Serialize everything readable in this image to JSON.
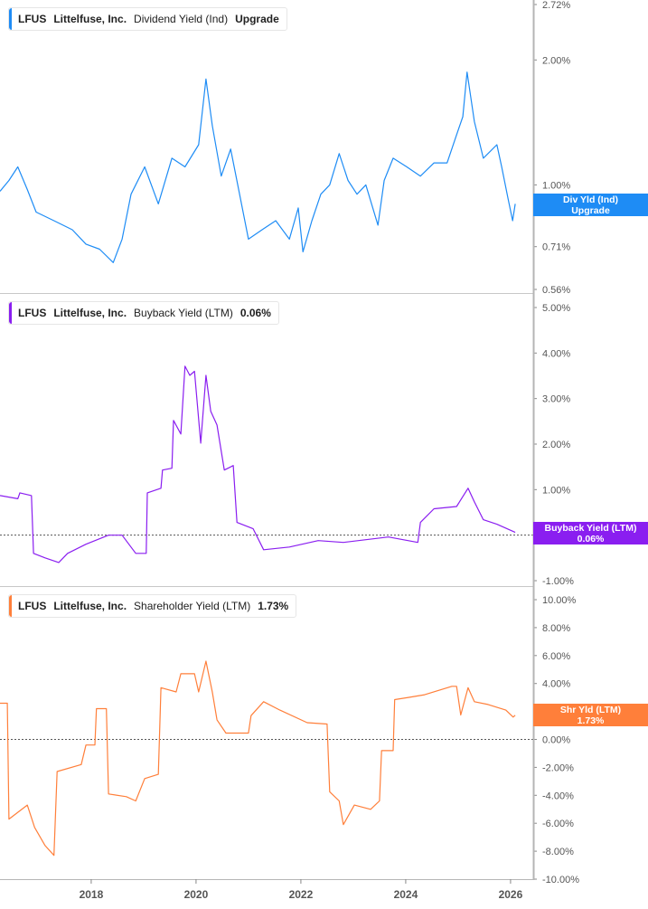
{
  "colors": {
    "dividend": "#1e8cf5",
    "buyback": "#8a1ef0",
    "shareholder": "#ff7f3a",
    "axis": "#b5b5b5",
    "tick_text": "#555555"
  },
  "panels": [
    {
      "legend": {
        "ticker": "LFUS",
        "company": "Littelfuse, Inc.",
        "metric": "Dividend Yield (Ind)",
        "value": "Upgrade"
      },
      "badge": {
        "line1": "Div Yld (Ind)",
        "line2": "Upgrade"
      }
    },
    {
      "legend": {
        "ticker": "LFUS",
        "company": "Littelfuse, Inc.",
        "metric": "Buyback Yield (LTM)",
        "value": "0.06%"
      },
      "badge": {
        "line1": "Buyback Yield (LTM)",
        "line2": "0.06%"
      }
    },
    {
      "legend": {
        "ticker": "LFUS",
        "company": "Littelfuse, Inc.",
        "metric": "Shareholder Yield (LTM)",
        "value": "1.73%"
      },
      "badge": {
        "line1": "Shr Yld (LTM)",
        "line2": "1.73%"
      }
    }
  ],
  "chart_data": [
    {
      "type": "line",
      "scale": "log",
      "ylim": [
        0.56,
        2.72
      ],
      "yticks": [
        "2.72%",
        "2.00%",
        "1.00%",
        "0.86%",
        "0.71%",
        "0.56%"
      ],
      "ytick_values": [
        2.72,
        2.0,
        1.0,
        0.86,
        0.71,
        0.56
      ],
      "series": [
        {
          "name": "Dividend Yield (Ind)",
          "color": "#1e8cf5",
          "points": [
            [
              2016.26,
              0.965
            ],
            [
              2016.43,
              1.025
            ],
            [
              2016.6,
              1.105
            ],
            [
              2016.78,
              0.975
            ],
            [
              2016.95,
              0.86
            ],
            [
              2017.29,
              0.82
            ],
            [
              2017.64,
              0.78
            ],
            [
              2017.9,
              0.72
            ],
            [
              2018.16,
              0.7
            ],
            [
              2018.42,
              0.65
            ],
            [
              2018.59,
              0.74
            ],
            [
              2018.76,
              0.95
            ],
            [
              2019.02,
              1.105
            ],
            [
              2019.28,
              0.9
            ],
            [
              2019.54,
              1.16
            ],
            [
              2019.79,
              1.105
            ],
            [
              2020.05,
              1.25
            ],
            [
              2020.19,
              1.8
            ],
            [
              2020.31,
              1.39
            ],
            [
              2020.48,
              1.05
            ],
            [
              2020.66,
              1.22
            ],
            [
              2020.83,
              0.95
            ],
            [
              2021.0,
              0.74
            ],
            [
              2021.26,
              0.78
            ],
            [
              2021.52,
              0.82
            ],
            [
              2021.78,
              0.74
            ],
            [
              2021.95,
              0.88
            ],
            [
              2022.04,
              0.69
            ],
            [
              2022.21,
              0.82
            ],
            [
              2022.38,
              0.95
            ],
            [
              2022.55,
              1.0
            ],
            [
              2022.73,
              1.19
            ],
            [
              2022.9,
              1.025
            ],
            [
              2023.07,
              0.95
            ],
            [
              2023.24,
              1.0
            ],
            [
              2023.47,
              0.8
            ],
            [
              2023.59,
              1.025
            ],
            [
              2023.76,
              1.16
            ],
            [
              2024.02,
              1.105
            ],
            [
              2024.28,
              1.05
            ],
            [
              2024.54,
              1.13
            ],
            [
              2024.79,
              1.13
            ],
            [
              2024.97,
              1.32
            ],
            [
              2025.09,
              1.46
            ],
            [
              2025.17,
              1.87
            ],
            [
              2025.31,
              1.42
            ],
            [
              2025.48,
              1.16
            ],
            [
              2025.74,
              1.25
            ],
            [
              2025.83,
              1.105
            ],
            [
              2025.95,
              0.93
            ],
            [
              2026.04,
              0.82
            ],
            [
              2026.09,
              0.9
            ]
          ]
        }
      ]
    },
    {
      "type": "line",
      "ylim": [
        -1,
        5
      ],
      "zero_line": true,
      "yticks": [
        "5.00%",
        "4.00%",
        "3.00%",
        "2.00%",
        "1.00%",
        "0.00%",
        "-1.00%"
      ],
      "ytick_values": [
        5,
        4,
        3,
        2,
        1,
        0,
        -1
      ],
      "series": [
        {
          "name": "Buyback Yield (LTM)",
          "color": "#8a1ef0",
          "points": [
            [
              2016.26,
              0.87
            ],
            [
              2016.6,
              0.8
            ],
            [
              2016.64,
              0.93
            ],
            [
              2016.86,
              0.87
            ],
            [
              2016.9,
              -0.4
            ],
            [
              2017.12,
              -0.5
            ],
            [
              2017.38,
              -0.6
            ],
            [
              2017.55,
              -0.4
            ],
            [
              2017.9,
              -0.2
            ],
            [
              2018.33,
              0.0
            ],
            [
              2018.59,
              0.0
            ],
            [
              2018.85,
              -0.4
            ],
            [
              2019.05,
              -0.4
            ],
            [
              2019.07,
              0.93
            ],
            [
              2019.33,
              1.03
            ],
            [
              2019.36,
              1.43
            ],
            [
              2019.54,
              1.47
            ],
            [
              2019.57,
              2.52
            ],
            [
              2019.71,
              2.22
            ],
            [
              2019.79,
              3.71
            ],
            [
              2019.88,
              3.51
            ],
            [
              2019.97,
              3.6
            ],
            [
              2020.09,
              2.02
            ],
            [
              2020.19,
              3.51
            ],
            [
              2020.28,
              2.72
            ],
            [
              2020.4,
              2.42
            ],
            [
              2020.54,
              1.43
            ],
            [
              2020.71,
              1.53
            ],
            [
              2020.78,
              0.28
            ],
            [
              2021.09,
              0.14
            ],
            [
              2021.29,
              -0.32
            ],
            [
              2021.78,
              -0.26
            ],
            [
              2022.33,
              -0.12
            ],
            [
              2022.81,
              -0.16
            ],
            [
              2023.67,
              -0.04
            ],
            [
              2024.23,
              -0.16
            ],
            [
              2024.28,
              0.28
            ],
            [
              2024.54,
              0.58
            ],
            [
              2024.97,
              0.63
            ],
            [
              2025.19,
              1.03
            ],
            [
              2025.31,
              0.73
            ],
            [
              2025.48,
              0.34
            ],
            [
              2025.74,
              0.24
            ],
            [
              2026.09,
              0.06
            ]
          ]
        }
      ]
    },
    {
      "type": "line",
      "ylim": [
        -10,
        10
      ],
      "zero_line": true,
      "yticks": [
        "10.00%",
        "8.00%",
        "6.00%",
        "4.00%",
        "2.00%",
        "0.00%",
        "-2.00%",
        "-4.00%",
        "-6.00%",
        "-8.00%",
        "-10.00%"
      ],
      "ytick_values": [
        10,
        8,
        6,
        4,
        2,
        0,
        -2,
        -4,
        -6,
        -8,
        -10
      ],
      "series": [
        {
          "name": "Shareholder Yield (LTM)",
          "color": "#ff7f3a",
          "points": [
            [
              2016.26,
              2.59
            ],
            [
              2016.4,
              2.59
            ],
            [
              2016.43,
              -5.7
            ],
            [
              2016.78,
              -4.7
            ],
            [
              2016.92,
              -6.3
            ],
            [
              2017.12,
              -7.6
            ],
            [
              2017.29,
              -8.3
            ],
            [
              2017.35,
              -2.3
            ],
            [
              2017.81,
              -1.8
            ],
            [
              2017.9,
              -0.4
            ],
            [
              2018.07,
              -0.4
            ],
            [
              2018.1,
              2.2
            ],
            [
              2018.29,
              2.2
            ],
            [
              2018.33,
              -3.9
            ],
            [
              2018.67,
              -4.1
            ],
            [
              2018.85,
              -4.4
            ],
            [
              2019.02,
              -2.8
            ],
            [
              2019.28,
              -2.5
            ],
            [
              2019.33,
              3.7
            ],
            [
              2019.62,
              3.4
            ],
            [
              2019.71,
              4.7
            ],
            [
              2019.97,
              4.7
            ],
            [
              2020.05,
              3.4
            ],
            [
              2020.19,
              5.6
            ],
            [
              2020.31,
              3.4
            ],
            [
              2020.4,
              1.4
            ],
            [
              2020.57,
              0.45
            ],
            [
              2021.0,
              0.45
            ],
            [
              2021.05,
              1.7
            ],
            [
              2021.29,
              2.7
            ],
            [
              2021.6,
              2.1
            ],
            [
              2022.12,
              1.2
            ],
            [
              2022.5,
              1.1
            ],
            [
              2022.55,
              -3.75
            ],
            [
              2022.73,
              -4.4
            ],
            [
              2022.81,
              -6.1
            ],
            [
              2023.02,
              -4.7
            ],
            [
              2023.33,
              -5.0
            ],
            [
              2023.5,
              -4.4
            ],
            [
              2023.54,
              -0.8
            ],
            [
              2023.76,
              -0.8
            ],
            [
              2023.79,
              2.85
            ],
            [
              2024.05,
              3.0
            ],
            [
              2024.36,
              3.2
            ],
            [
              2024.88,
              3.8
            ],
            [
              2024.97,
              3.8
            ],
            [
              2025.05,
              1.75
            ],
            [
              2025.19,
              3.7
            ],
            [
              2025.31,
              2.7
            ],
            [
              2025.57,
              2.5
            ],
            [
              2025.91,
              2.1
            ],
            [
              2026.05,
              1.6
            ],
            [
              2026.09,
              1.73
            ]
          ]
        }
      ]
    }
  ],
  "xaxis": {
    "ticks": [
      "2018",
      "2020",
      "2022",
      "2024",
      "2026"
    ],
    "tick_values": [
      2018,
      2020,
      2022,
      2024,
      2026
    ]
  }
}
